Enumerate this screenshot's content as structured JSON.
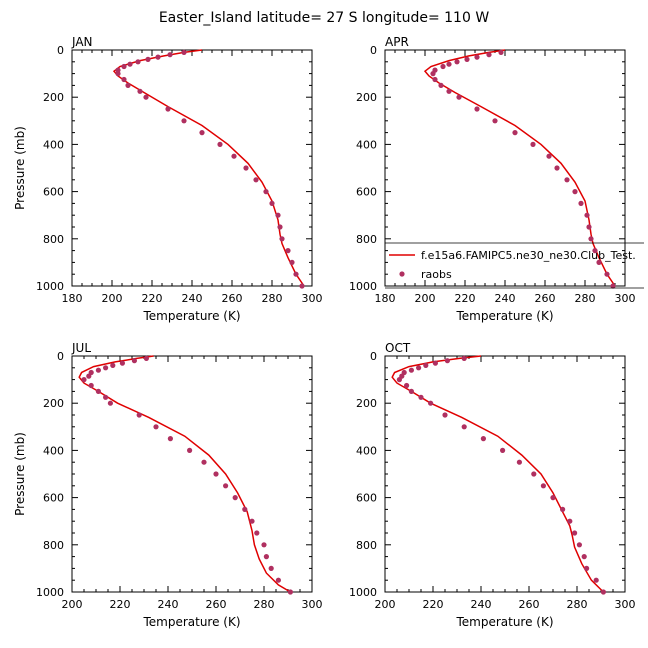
{
  "figure": {
    "title": "Easter_Island  latitude= 27 S longitude= 110 W"
  },
  "colors": {
    "model": "#e00000",
    "obs": "#b03060",
    "axis": "#000000"
  },
  "legend": {
    "model_label": "f.e15a6.FAMIPC5.ne30_ne30.Club_Test.",
    "obs_label": "raobs",
    "panel": "APR"
  },
  "chart_data": [
    {
      "type": "line",
      "panel": "JAN",
      "xlabel": "Temperature (K)",
      "ylabel": "Pressure (mb)",
      "xlim": [
        180,
        300
      ],
      "ylim": [
        1000,
        0
      ],
      "xticks": [
        180,
        200,
        220,
        240,
        260,
        280,
        300
      ],
      "yticks": [
        0,
        200,
        400,
        600,
        800,
        1000
      ],
      "series": [
        {
          "name": "f.e15a6.FAMIPC5.ne30_ne30.Club_Test.",
          "kind": "line",
          "points": [
            [
              245,
              0
            ],
            [
              236,
              10
            ],
            [
              226,
              25
            ],
            [
              214,
              45
            ],
            [
              204,
              70
            ],
            [
              201,
              90
            ],
            [
              203,
              110
            ],
            [
              208,
              140
            ],
            [
              216,
              180
            ],
            [
              228,
              240
            ],
            [
              245,
              320
            ],
            [
              258,
              400
            ],
            [
              268,
              480
            ],
            [
              275,
              560
            ],
            [
              280,
              640
            ],
            [
              283,
              720
            ],
            [
              284,
              780
            ],
            [
              285,
              820
            ],
            [
              288,
              880
            ],
            [
              292,
              950
            ],
            [
              296,
              1000
            ]
          ]
        },
        {
          "name": "raobs",
          "kind": "scatter",
          "points": [
            [
              236,
              10
            ],
            [
              229,
              20
            ],
            [
              223,
              30
            ],
            [
              218,
              40
            ],
            [
              213,
              50
            ],
            [
              209,
              60
            ],
            [
              206,
              70
            ],
            [
              203,
              85
            ],
            [
              203,
              100
            ],
            [
              206,
              125
            ],
            [
              208,
              150
            ],
            [
              214,
              175
            ],
            [
              217,
              200
            ],
            [
              228,
              250
            ],
            [
              236,
              300
            ],
            [
              245,
              350
            ],
            [
              254,
              400
            ],
            [
              261,
              450
            ],
            [
              267,
              500
            ],
            [
              272,
              550
            ],
            [
              277,
              600
            ],
            [
              280,
              650
            ],
            [
              283,
              700
            ],
            [
              284,
              750
            ],
            [
              285,
              800
            ],
            [
              288,
              850
            ],
            [
              290,
              900
            ],
            [
              292,
              950
            ],
            [
              295,
              1000
            ]
          ]
        }
      ]
    },
    {
      "type": "line",
      "panel": "APR",
      "xlabel": "Temperature (K)",
      "ylabel": "",
      "xlim": [
        180,
        300
      ],
      "ylim": [
        1000,
        0
      ],
      "xticks": [
        180,
        200,
        220,
        240,
        260,
        280,
        300
      ],
      "yticks": [
        0,
        200,
        400,
        600,
        800,
        1000
      ],
      "series": [
        {
          "name": "f.e15a6.FAMIPC5.ne30_ne30.Club_Test.",
          "kind": "line",
          "points": [
            [
              240,
              0
            ],
            [
              232,
              10
            ],
            [
              222,
              25
            ],
            [
              212,
              45
            ],
            [
              203,
              70
            ],
            [
              200,
              90
            ],
            [
              202,
              110
            ],
            [
              207,
              140
            ],
            [
              215,
              180
            ],
            [
              228,
              240
            ],
            [
              245,
              320
            ],
            [
              258,
              400
            ],
            [
              268,
              480
            ],
            [
              275,
              560
            ],
            [
              280,
              640
            ],
            [
              282,
              720
            ],
            [
              283,
              780
            ],
            [
              284,
              820
            ],
            [
              287,
              880
            ],
            [
              291,
              950
            ],
            [
              295,
              1000
            ]
          ]
        },
        {
          "name": "raobs",
          "kind": "scatter",
          "points": [
            [
              238,
              10
            ],
            [
              232,
              20
            ],
            [
              226,
              30
            ],
            [
              221,
              40
            ],
            [
              216,
              50
            ],
            [
              212,
              60
            ],
            [
              209,
              70
            ],
            [
              205,
              85
            ],
            [
              204,
              100
            ],
            [
              205,
              125
            ],
            [
              208,
              150
            ],
            [
              212,
              175
            ],
            [
              217,
              200
            ],
            [
              226,
              250
            ],
            [
              235,
              300
            ],
            [
              245,
              350
            ],
            [
              254,
              400
            ],
            [
              262,
              450
            ],
            [
              266,
              500
            ],
            [
              271,
              550
            ],
            [
              275,
              600
            ],
            [
              278,
              650
            ],
            [
              281,
              700
            ],
            [
              282,
              750
            ],
            [
              283,
              800
            ],
            [
              285,
              850
            ],
            [
              287,
              900
            ],
            [
              291,
              950
            ],
            [
              294,
              1000
            ]
          ]
        }
      ]
    },
    {
      "type": "line",
      "panel": "JUL",
      "xlabel": "Temperature (K)",
      "ylabel": "Pressure (mb)",
      "xlim": [
        200,
        300
      ],
      "ylim": [
        1000,
        0
      ],
      "xticks": [
        200,
        220,
        240,
        260,
        280,
        300
      ],
      "yticks": [
        0,
        200,
        400,
        600,
        800,
        1000
      ],
      "series": [
        {
          "name": "f.e15a6.FAMIPC5.ne30_ne30.Club_Test.",
          "kind": "line",
          "points": [
            [
              234,
              0
            ],
            [
              227,
              10
            ],
            [
              218,
              25
            ],
            [
              209,
              45
            ],
            [
              204,
              70
            ],
            [
              203,
              90
            ],
            [
              205,
              115
            ],
            [
              211,
              150
            ],
            [
              219,
              200
            ],
            [
              232,
              260
            ],
            [
              247,
              340
            ],
            [
              257,
              420
            ],
            [
              264,
              500
            ],
            [
              269,
              580
            ],
            [
              273,
              660
            ],
            [
              275,
              740
            ],
            [
              276,
              800
            ],
            [
              278,
              860
            ],
            [
              281,
              920
            ],
            [
              286,
              970
            ],
            [
              291,
              1000
            ]
          ]
        },
        {
          "name": "raobs",
          "kind": "scatter",
          "points": [
            [
              231,
              10
            ],
            [
              226,
              20
            ],
            [
              221,
              30
            ],
            [
              217,
              40
            ],
            [
              214,
              50
            ],
            [
              211,
              60
            ],
            [
              208,
              70
            ],
            [
              207,
              85
            ],
            [
              205,
              100
            ],
            [
              208,
              125
            ],
            [
              211,
              150
            ],
            [
              214,
              175
            ],
            [
              216,
              200
            ],
            [
              228,
              250
            ],
            [
              235,
              300
            ],
            [
              241,
              350
            ],
            [
              249,
              400
            ],
            [
              255,
              450
            ],
            [
              260,
              500
            ],
            [
              264,
              550
            ],
            [
              268,
              600
            ],
            [
              272,
              650
            ],
            [
              275,
              700
            ],
            [
              277,
              750
            ],
            [
              280,
              800
            ],
            [
              281,
              850
            ],
            [
              283,
              900
            ],
            [
              286,
              950
            ],
            [
              291,
              1000
            ]
          ]
        }
      ]
    },
    {
      "type": "line",
      "panel": "OCT",
      "xlabel": "Temperature (K)",
      "ylabel": "",
      "xlim": [
        200,
        300
      ],
      "ylim": [
        1000,
        0
      ],
      "xticks": [
        200,
        220,
        240,
        260,
        280,
        300
      ],
      "yticks": [
        0,
        200,
        400,
        600,
        800,
        1000
      ],
      "series": [
        {
          "name": "f.e15a6.FAMIPC5.ne30_ne30.Club_Test.",
          "kind": "line",
          "points": [
            [
              240,
              0
            ],
            [
              231,
              10
            ],
            [
              220,
              25
            ],
            [
              210,
              45
            ],
            [
              204,
              70
            ],
            [
              203,
              90
            ],
            [
              205,
              115
            ],
            [
              211,
              150
            ],
            [
              219,
              200
            ],
            [
              232,
              260
            ],
            [
              247,
              340
            ],
            [
              257,
              420
            ],
            [
              265,
              500
            ],
            [
              270,
              580
            ],
            [
              274,
              660
            ],
            [
              277,
              720
            ],
            [
              278,
              760
            ],
            [
              279,
              810
            ],
            [
              282,
              880
            ],
            [
              286,
              950
            ],
            [
              291,
              1000
            ]
          ]
        },
        {
          "name": "raobs",
          "kind": "scatter",
          "points": [
            [
              233,
              10
            ],
            [
              226,
              20
            ],
            [
              221,
              30
            ],
            [
              217,
              40
            ],
            [
              214,
              50
            ],
            [
              211,
              60
            ],
            [
              208,
              70
            ],
            [
              207,
              85
            ],
            [
              206,
              100
            ],
            [
              209,
              125
            ],
            [
              211,
              150
            ],
            [
              215,
              175
            ],
            [
              219,
              200
            ],
            [
              225,
              250
            ],
            [
              233,
              300
            ],
            [
              241,
              350
            ],
            [
              249,
              400
            ],
            [
              256,
              450
            ],
            [
              262,
              500
            ],
            [
              266,
              550
            ],
            [
              270,
              600
            ],
            [
              274,
              650
            ],
            [
              277,
              700
            ],
            [
              279,
              750
            ],
            [
              281,
              800
            ],
            [
              283,
              850
            ],
            [
              284,
              900
            ],
            [
              288,
              950
            ],
            [
              291,
              1000
            ]
          ]
        }
      ]
    }
  ]
}
